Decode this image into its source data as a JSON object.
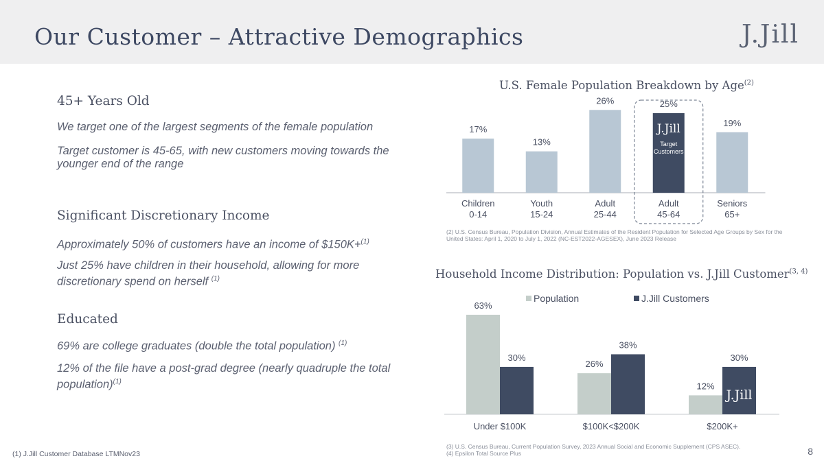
{
  "slide": {
    "title": "Our Customer – Attractive Demographics",
    "logo": "J.Jill",
    "page_number": "8",
    "footnote": "(1)   J.Jill Customer Database LTMNov23"
  },
  "sections": [
    {
      "heading": "45+ Years Old",
      "lines": [
        "We target one of the largest segments of the female population",
        "Target customer is 45-65, with new customers moving towards the younger end of the range"
      ]
    },
    {
      "heading": "Significant Discretionary Income",
      "lines": [
        "Approximately 50% of customers have an income of $150K+",
        "Just 25% have children in their household, allowing for more discretionary spend on herself "
      ],
      "refs": [
        "(1)",
        "(1)"
      ]
    },
    {
      "heading": "Educated",
      "lines": [
        "69% are college graduates (double the total population) ",
        "12% of the file have a post-grad degree (nearly quadruple the total population)"
      ],
      "refs": [
        "(1)",
        "(1)"
      ]
    }
  ],
  "chart_data": [
    {
      "type": "bar",
      "title": "U.S. Female Population Breakdown by Age",
      "title_ref": "(2)",
      "categories": [
        "Children 0-14",
        "Youth 15-24",
        "Adult 25-44",
        "Adult 45-64",
        "Seniors 65+"
      ],
      "category_lines": [
        [
          "Children",
          "0-14"
        ],
        [
          "Youth",
          "15-24"
        ],
        [
          "Adult",
          "25-44"
        ],
        [
          "Adult",
          "45-64"
        ],
        [
          "Seniors",
          "65+"
        ]
      ],
      "values": [
        17,
        13,
        26,
        25,
        19
      ],
      "labels": [
        "17%",
        "13%",
        "26%",
        "25%",
        "19%"
      ],
      "unit": "%",
      "ylim": [
        0,
        28
      ],
      "highlight_index": 3,
      "highlight_logo": "J.Jill",
      "highlight_label": [
        "Target",
        "Customers"
      ],
      "colors": {
        "default": "#b8c7d4",
        "highlight": "#3f4b62"
      },
      "source": "(2) U.S. Census Bureau, Population Division, Annual Estimates of the Resident Population for Selected Age Groups by Sex for the United States: April 1, 2020 to July 1, 2022 (NC-EST2022-AGESEX), June 2023 Release"
    },
    {
      "type": "bar",
      "title": "Household Income Distribution:  Population vs. J.Jill Customer",
      "title_ref": "(3, 4)",
      "categories": [
        "Under $100K",
        "$100K<$200K",
        "$200K+"
      ],
      "series": [
        {
          "name": "Population",
          "values": [
            63,
            26,
            12
          ],
          "labels": [
            "63%",
            "26%",
            "12%"
          ],
          "color": "#c4ceca"
        },
        {
          "name": "J.Jill Customers",
          "values": [
            30,
            38,
            30
          ],
          "labels": [
            "30%",
            "38%",
            "30%"
          ],
          "color": "#3f4b62"
        }
      ],
      "unit": "%",
      "ylim": [
        0,
        66
      ],
      "legend": "top",
      "logo": "J.Jill",
      "sources": [
        "(3) U.S. Census Bureau, Current Population Survey, 2023 Annual Social and Economic Supplement (CPS ASEC).",
        "(4) Epsilon Total Source Plus"
      ]
    }
  ]
}
